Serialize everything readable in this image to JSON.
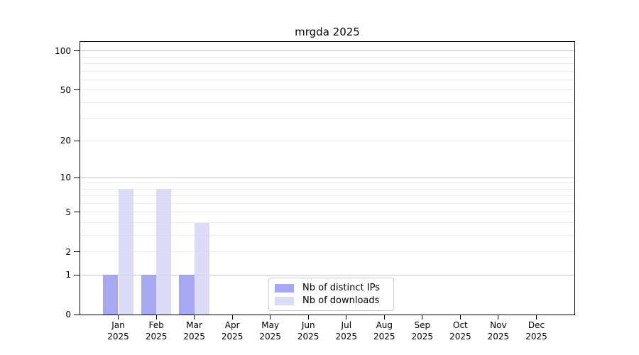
{
  "chart_data": {
    "type": "bar",
    "title": "mrgda 2025",
    "categories": [
      "Jan 2025",
      "Feb 2025",
      "Mar 2025",
      "Apr 2025",
      "May 2025",
      "Jun 2025",
      "Jul 2025",
      "Aug 2025",
      "Sep 2025",
      "Oct 2025",
      "Nov 2025",
      "Dec 2025"
    ],
    "x": {
      "months": [
        "Jan",
        "Feb",
        "Mar",
        "Apr",
        "May",
        "Jun",
        "Jul",
        "Aug",
        "Sep",
        "Oct",
        "Nov",
        "Dec"
      ],
      "year": "2025"
    },
    "series": [
      {
        "name": "Nb of distinct IPs",
        "color": "#a8a8f2",
        "values": [
          1,
          1,
          1,
          0,
          0,
          0,
          0,
          0,
          0,
          0,
          0,
          0
        ]
      },
      {
        "name": "Nb of downloads",
        "color": "#dcdcf8",
        "values": [
          8,
          8,
          4,
          0,
          0,
          0,
          0,
          0,
          0,
          0,
          0,
          0
        ]
      }
    ],
    "y_axis": {
      "scale": "log1p",
      "tick_values": [
        0,
        1,
        2,
        5,
        10,
        20,
        50,
        100
      ],
      "tick_labels": [
        "0",
        "1",
        "2",
        "5",
        "10",
        "20",
        "50",
        "100"
      ],
      "gridline_values": [
        1,
        2,
        3,
        4,
        5,
        6,
        7,
        8,
        9,
        10,
        20,
        30,
        40,
        50,
        60,
        70,
        80,
        90,
        100
      ],
      "major_gridlines": [
        1,
        10,
        100
      ],
      "ylim": [
        0,
        116
      ]
    },
    "legend": {
      "position": "lower center inside plot",
      "entries": [
        "Nb of distinct IPs",
        "Nb of downloads"
      ]
    },
    "grid": "on",
    "colors": {
      "bar_distinct_ips": "#a8a8f2",
      "bar_downloads": "#dcdcf8",
      "grid_major": "#c6c6c6",
      "grid_minor": "#ececec",
      "spine": "#000000",
      "background": "#ffffff",
      "text": "#000000",
      "legend_border": "#cccccc"
    }
  }
}
